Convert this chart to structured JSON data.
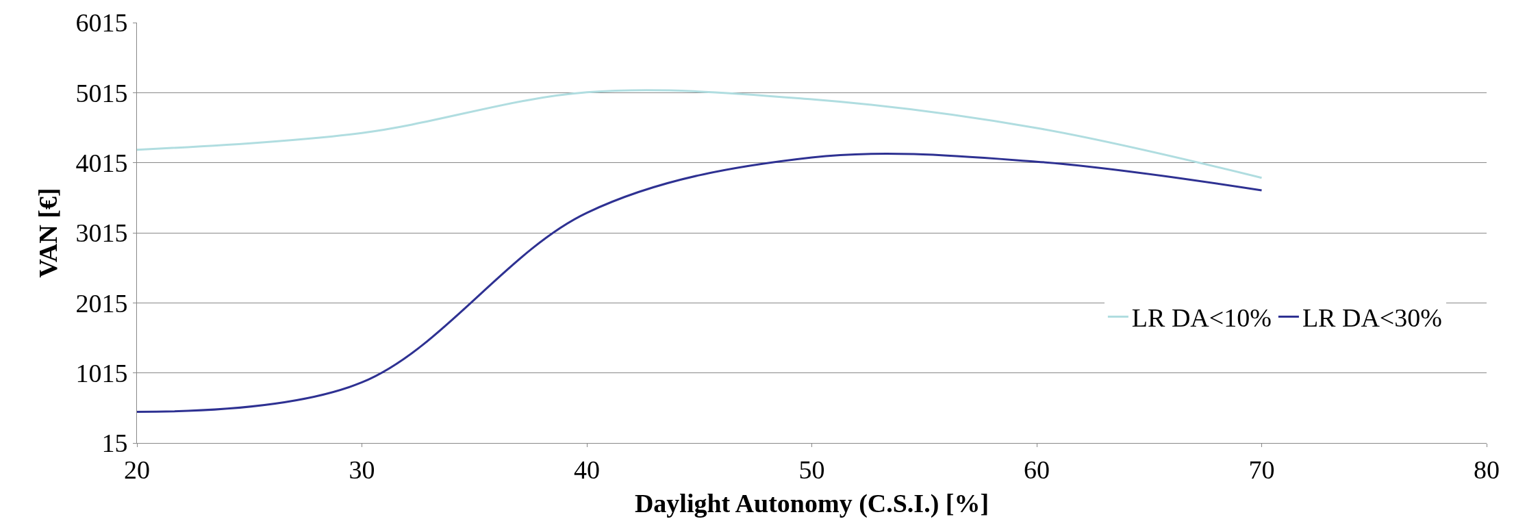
{
  "chart_data": {
    "type": "line",
    "xlabel": "Daylight Autonomy (C.S.I.) [%]",
    "ylabel": "VAN [€]",
    "x": [
      20,
      30,
      40,
      50,
      60,
      70
    ],
    "series": [
      {
        "name": "LR DA<10%",
        "color": "#b0dde0",
        "values": [
          4200,
          4440,
          5020,
          4920,
          4510,
          3800
        ]
      },
      {
        "name": "LR DA<30%",
        "color": "#2e3192",
        "values": [
          460,
          880,
          3300,
          4090,
          4030,
          3620
        ]
      }
    ],
    "xlim": [
      20,
      80
    ],
    "xticks": [
      20,
      30,
      40,
      50,
      60,
      70,
      80
    ],
    "ylim": [
      15,
      6015
    ],
    "yticks": [
      15,
      1015,
      2015,
      3015,
      4015,
      5015,
      6015
    ],
    "grid": "y",
    "legend": "right",
    "marker": "none",
    "line_style": "solid"
  }
}
